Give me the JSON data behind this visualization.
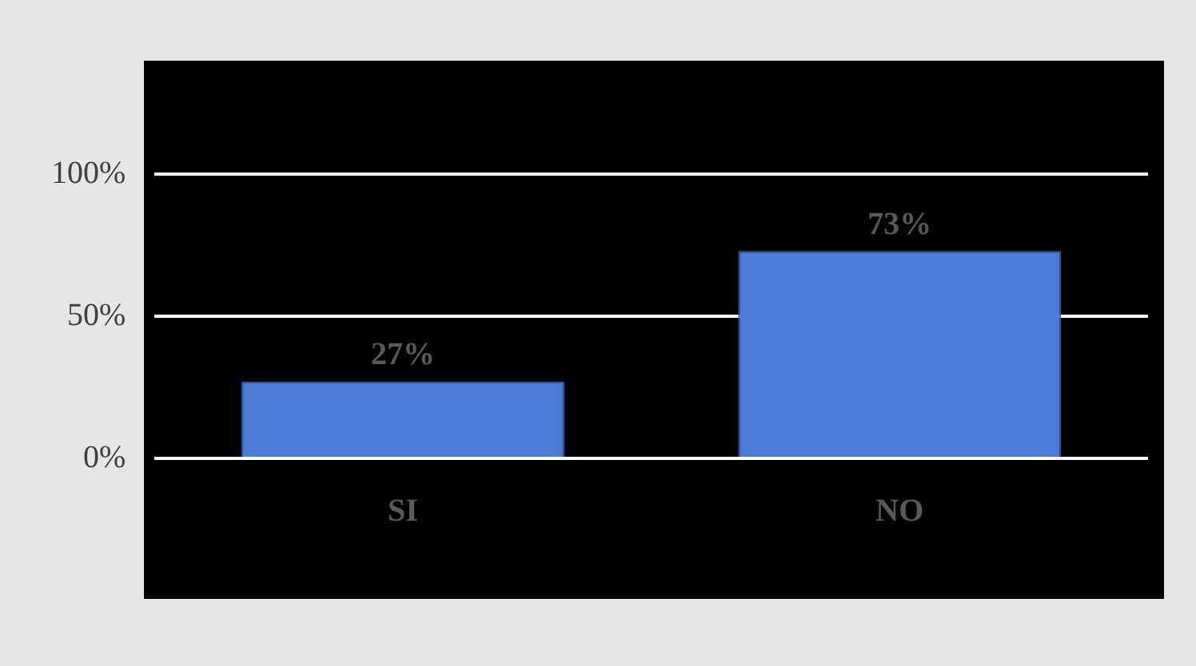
{
  "chart_data": {
    "type": "bar",
    "categories": [
      "SI",
      "NO"
    ],
    "values": [
      27,
      73
    ],
    "color": "#4a7bd8",
    "value_labels": [
      "27%",
      "73%"
    ],
    "ylim": [
      0,
      140
    ],
    "yticks": [
      {
        "value": 0,
        "label": "0%"
      },
      {
        "value": 50,
        "label": "50%"
      },
      {
        "value": 100,
        "label": "100%"
      }
    ],
    "grid": "y",
    "legend": false
  }
}
